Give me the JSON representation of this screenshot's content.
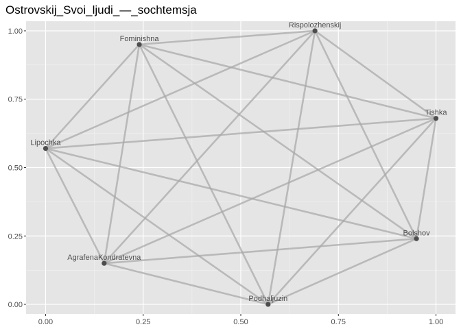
{
  "chart_data": {
    "type": "scatter",
    "title": "Ostrovskij_Svoi_ljudi_—_sochtemsja",
    "xlabel": "",
    "ylabel": "",
    "xlim": [
      -0.05,
      1.05
    ],
    "ylim": [
      -0.035,
      1.035
    ],
    "x_ticks": [
      0.0,
      0.25,
      0.5,
      0.75,
      1.0
    ],
    "x_tick_labels": [
      "0.00",
      "0.25",
      "0.50",
      "0.75",
      "1.00"
    ],
    "y_ticks": [
      0.0,
      0.25,
      0.5,
      0.75,
      1.0
    ],
    "y_tick_labels": [
      "0.00",
      "0.25",
      "0.50",
      "0.75",
      "1.00"
    ],
    "grid": true,
    "background": "#e5e5e5",
    "edge_color": "#a6a6a6",
    "node_color": "#4d4d4d",
    "nodes": [
      {
        "name": "Rispolozhenskij",
        "x": 0.69,
        "y": 1.0
      },
      {
        "name": "Fominishna",
        "x": 0.24,
        "y": 0.95
      },
      {
        "name": "Tishka",
        "x": 1.0,
        "y": 0.68
      },
      {
        "name": "Lipochka",
        "x": 0.0,
        "y": 0.57
      },
      {
        "name": "Bolshov",
        "x": 0.95,
        "y": 0.24
      },
      {
        "name": "AgrafenaKondratevna",
        "x": 0.15,
        "y": 0.15
      },
      {
        "name": "Podhaljuzin",
        "x": 0.57,
        "y": 0.0
      }
    ],
    "edges": [
      [
        "Rispolozhenskij",
        "Fominishna"
      ],
      [
        "Rispolozhenskij",
        "Tishka"
      ],
      [
        "Rispolozhenskij",
        "Lipochka"
      ],
      [
        "Rispolozhenskij",
        "Bolshov"
      ],
      [
        "Rispolozhenskij",
        "AgrafenaKondratevna"
      ],
      [
        "Rispolozhenskij",
        "Podhaljuzin"
      ],
      [
        "Fominishna",
        "Tishka"
      ],
      [
        "Fominishna",
        "Lipochka"
      ],
      [
        "Fominishna",
        "Bolshov"
      ],
      [
        "Fominishna",
        "AgrafenaKondratevna"
      ],
      [
        "Fominishna",
        "Podhaljuzin"
      ],
      [
        "Tishka",
        "Lipochka"
      ],
      [
        "Tishka",
        "Bolshov"
      ],
      [
        "Tishka",
        "AgrafenaKondratevna"
      ],
      [
        "Tishka",
        "Podhaljuzin"
      ],
      [
        "Lipochka",
        "Bolshov"
      ],
      [
        "Lipochka",
        "AgrafenaKondratevna"
      ],
      [
        "Lipochka",
        "Podhaljuzin"
      ],
      [
        "Bolshov",
        "AgrafenaKondratevna"
      ],
      [
        "Bolshov",
        "Podhaljuzin"
      ],
      [
        "AgrafenaKondratevna",
        "Podhaljuzin"
      ]
    ]
  }
}
